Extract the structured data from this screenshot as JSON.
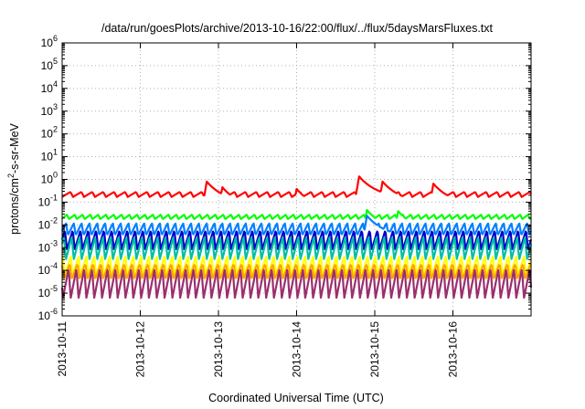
{
  "chart_data": {
    "type": "line",
    "title": "/data/run/goesPlots/archive/2013-10-16/22:00/flux/../flux/5daysMarsFluxes.txt",
    "xlabel": "Coordinated Universal Time (UTC)",
    "ylabel_parts": [
      "protons/cm",
      "2",
      "-s-sr-MeV"
    ],
    "y_scale": "log",
    "ylim": [
      1e-06,
      1000000.0
    ],
    "y_ticks": [
      {
        "base": "10",
        "exp": "6"
      },
      {
        "base": "10",
        "exp": "5"
      },
      {
        "base": "10",
        "exp": "4"
      },
      {
        "base": "10",
        "exp": "3"
      },
      {
        "base": "10",
        "exp": "2"
      },
      {
        "base": "10",
        "exp": "1"
      },
      {
        "base": "10",
        "exp": "0"
      },
      {
        "base": "10",
        "exp": "-1"
      },
      {
        "base": "10",
        "exp": "-2"
      },
      {
        "base": "10",
        "exp": "-3"
      },
      {
        "base": "10",
        "exp": "-4"
      },
      {
        "base": "10",
        "exp": "-5"
      },
      {
        "base": "10",
        "exp": "-6"
      }
    ],
    "x_ticks": [
      "2013-10-11",
      "2013-10-12",
      "2013-10-13",
      "2013-10-14",
      "2013-10-15",
      "2013-10-16"
    ],
    "xlim_days": [
      0,
      6.0
    ],
    "grid": true,
    "series": [
      {
        "color": "#ff0000",
        "low": 0.17,
        "high": 0.28,
        "period_days": 0.14,
        "bumps": [
          [
            1.85,
            0.8
          ],
          [
            2.05,
            0.45
          ],
          [
            3.0,
            0.38
          ],
          [
            3.8,
            1.35
          ],
          [
            4.1,
            0.8
          ],
          [
            4.75,
            0.65
          ]
        ]
      },
      {
        "color": "#00ff00",
        "low": 0.018,
        "high": 0.028,
        "period_days": 0.1,
        "bumps": [
          [
            3.9,
            0.045
          ],
          [
            4.3,
            0.04
          ]
        ]
      },
      {
        "color": "#0080ff",
        "low": 0.0035,
        "high": 0.012,
        "period_days": 0.1,
        "bumps": [
          [
            3.9,
            0.025
          ]
        ]
      },
      {
        "color": "#0000cc",
        "low": 0.0008,
        "high": 0.006,
        "period_days": 0.1,
        "bumps": []
      },
      {
        "color": "#00c0a0",
        "low": 0.0003,
        "high": 0.003,
        "period_days": 0.1,
        "bumps": []
      },
      {
        "color": "#ffff00",
        "low": 6e-05,
        "high": 0.0004,
        "period_days": 0.1,
        "bumps": []
      },
      {
        "color": "#ffa500",
        "low": 4e-05,
        "high": 0.0002,
        "period_days": 0.1,
        "bumps": []
      },
      {
        "color": "#9b2f6e",
        "low": 6e-06,
        "high": 0.00012,
        "period_days": 0.1,
        "bumps": []
      }
    ]
  }
}
